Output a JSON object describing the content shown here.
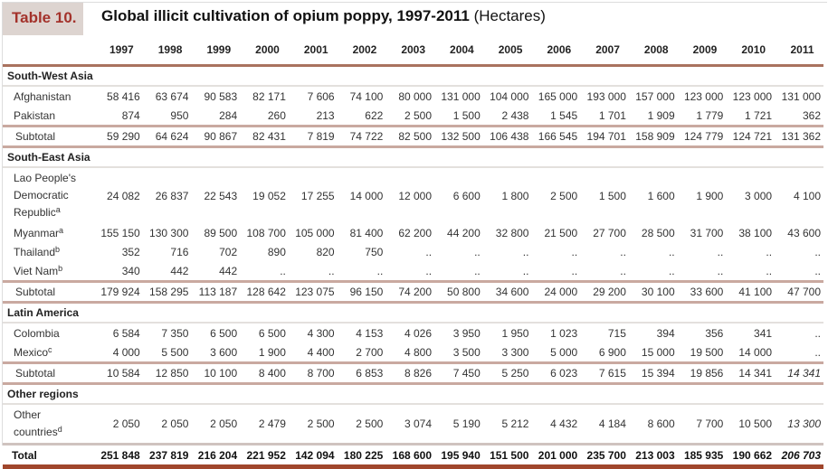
{
  "title": {
    "tag": "Table 10.",
    "main": "Global illicit cultivation of opium poppy, 1997-2011",
    "unit": "(Hectares)"
  },
  "years": [
    "1997",
    "1998",
    "1999",
    "2000",
    "2001",
    "2002",
    "2003",
    "2004",
    "2005",
    "2006",
    "2007",
    "2008",
    "2009",
    "2010",
    "2011"
  ],
  "sections": [
    {
      "region": "South-West Asia",
      "rows": [
        {
          "label": "Afghanistan",
          "sup": "",
          "values": [
            "58 416",
            "63 674",
            "90 583",
            "82 171",
            "7 606",
            "74 100",
            "80 000",
            "131 000",
            "104 000",
            "165 000",
            "193 000",
            "157 000",
            "123 000",
            "123 000",
            "131 000"
          ]
        },
        {
          "label": "Pakistan",
          "sup": "",
          "values": [
            "874",
            "950",
            "284",
            "260",
            "213",
            "622",
            "2 500",
            "1 500",
            "2 438",
            "1 545",
            "1 701",
            "1 909",
            "1 779",
            "1 721",
            "362"
          ]
        }
      ],
      "subtotal": {
        "label": "Subtotal",
        "values": [
          "59 290",
          "64 624",
          "90 867",
          "82 431",
          "7 819",
          "74 722",
          "82 500",
          "132 500",
          "106 438",
          "166 545",
          "194 701",
          "158 909",
          "124 779",
          "124 721",
          "131 362"
        ],
        "italic_last": false
      }
    },
    {
      "region": "South-East Asia",
      "rows": [
        {
          "label": "Lao People's Democratic Republic",
          "sup": "a",
          "multi": true,
          "values": [
            "24 082",
            "26 837",
            "22 543",
            "19 052",
            "17 255",
            "14 000",
            "12 000",
            "6 600",
            "1 800",
            "2 500",
            "1 500",
            "1 600",
            "1 900",
            "3 000",
            "4 100"
          ]
        },
        {
          "label": "Myanmar",
          "sup": "a",
          "values": [
            "155 150",
            "130 300",
            "89 500",
            "108 700",
            "105 000",
            "81 400",
            "62 200",
            "44 200",
            "32 800",
            "21 500",
            "27 700",
            "28 500",
            "31 700",
            "38 100",
            "43 600"
          ]
        },
        {
          "label": "Thailand",
          "sup": "b",
          "values": [
            "352",
            "716",
            "702",
            "890",
            "820",
            "750",
            "..",
            "..",
            "..",
            "..",
            "..",
            "..",
            "..",
            "..",
            ".."
          ]
        },
        {
          "label": "Viet Nam",
          "sup": "b",
          "values": [
            "340",
            "442",
            "442",
            "..",
            "..",
            "..",
            "..",
            "..",
            "..",
            "..",
            "..",
            "..",
            "..",
            "..",
            ".."
          ]
        }
      ],
      "subtotal": {
        "label": "Subtotal",
        "values": [
          "179 924",
          "158 295",
          "113 187",
          "128 642",
          "123 075",
          "96 150",
          "74 200",
          "50 800",
          "34 600",
          "24 000",
          "29 200",
          "30 100",
          "33 600",
          "41 100",
          "47 700"
        ],
        "italic_last": false
      }
    },
    {
      "region": "Latin America",
      "rows": [
        {
          "label": "Colombia",
          "sup": "",
          "values": [
            "6 584",
            "7 350",
            "6 500",
            "6 500",
            "4 300",
            "4 153",
            "4 026",
            "3 950",
            "1 950",
            "1 023",
            "715",
            "394",
            "356",
            "341",
            ".."
          ]
        },
        {
          "label": "Mexico",
          "sup": "c",
          "values": [
            "4 000",
            "5 500",
            "3 600",
            "1 900",
            "4 400",
            "2 700",
            "4 800",
            "3 500",
            "3 300",
            "5 000",
            "6 900",
            "15 000",
            "19 500",
            "14 000",
            ".."
          ]
        }
      ],
      "subtotal": {
        "label": "Subtotal",
        "values": [
          "10 584",
          "12 850",
          "10 100",
          "8 400",
          "8 700",
          "6 853",
          "8 826",
          "7 450",
          "5 250",
          "6 023",
          "7 615",
          "15 394",
          "19 856",
          "14 341",
          "14 341"
        ],
        "italic_last": true
      }
    },
    {
      "region": "Other regions",
      "rows": [
        {
          "label": "Other countries",
          "sup": "d",
          "multi": true,
          "italic_last": true,
          "values": [
            "2 050",
            "2 050",
            "2 050",
            "2 479",
            "2 500",
            "2 500",
            "3 074",
            "5 190",
            "5 212",
            "4 432",
            "4 184",
            "8 600",
            "7 700",
            "10 500",
            "13 300"
          ]
        }
      ]
    }
  ],
  "total": {
    "label": "Total",
    "values": [
      "251 848",
      "237 819",
      "216 204",
      "221 952",
      "142 094",
      "180 225",
      "168 600",
      "195 940",
      "151 500",
      "201 000",
      "235 700",
      "213 003",
      "185 935",
      "190 662",
      "206 703"
    ],
    "italic_last": true
  },
  "colors": {
    "tag_text": "#a3322b",
    "tag_bg": "#ddd4d0",
    "rule": "#a9725e",
    "total_rule": "#a0462c"
  }
}
